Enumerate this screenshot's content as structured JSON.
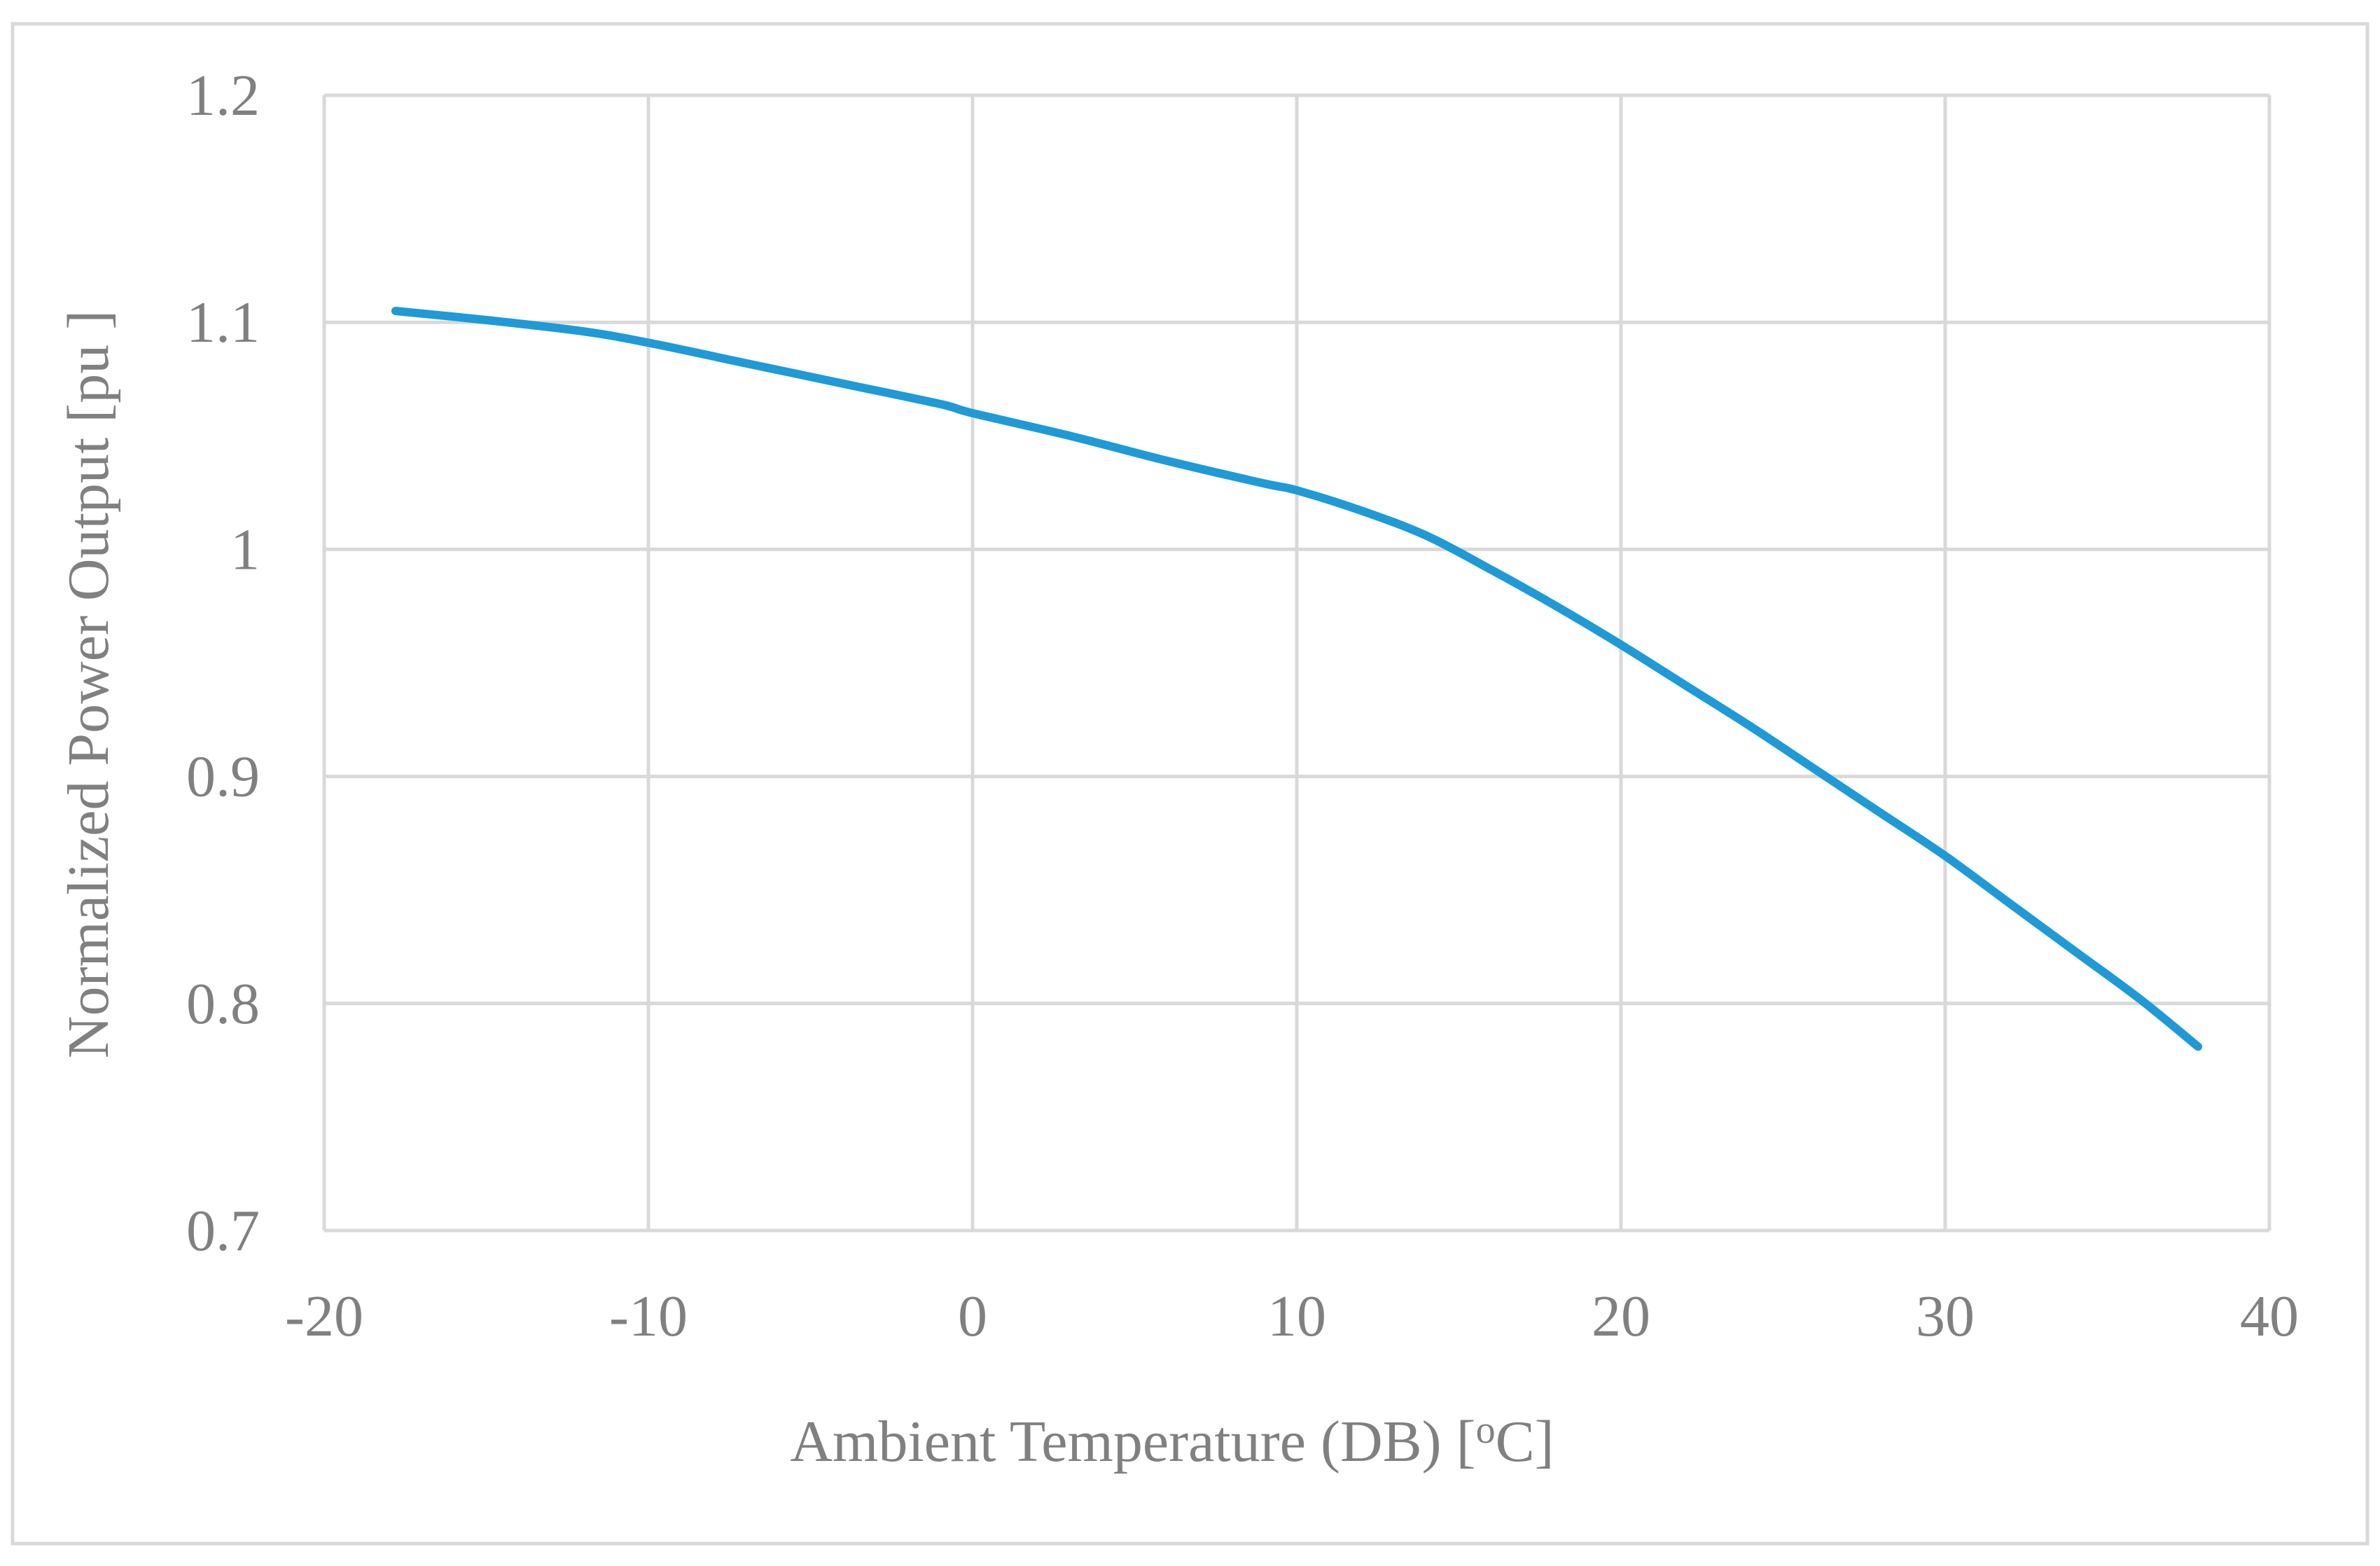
{
  "chart_data": {
    "type": "line",
    "title": "",
    "xlabel": "Ambient Temperature (DB) [",
    "xlabel_superscript": "o",
    "xlabel_suffix": "C]",
    "ylabel": "Normalized Power Output [pu ]",
    "xlim": [
      -20,
      40
    ],
    "ylim": [
      0.7,
      1.2
    ],
    "x_ticks": [
      -20,
      -10,
      0,
      10,
      20,
      30,
      40
    ],
    "x_tick_labels": [
      "-20",
      "-10",
      "0",
      "10",
      "20",
      "30",
      "40"
    ],
    "y_ticks": [
      0.7,
      0.8,
      0.9,
      1.0,
      1.1,
      1.2
    ],
    "y_tick_labels": [
      "0.7",
      "0.8",
      "0.9",
      "1",
      "1.1",
      "1.2"
    ],
    "grid": true,
    "legend": "none",
    "colors": {
      "series": "#1f9ad6",
      "grid": "#d9d9d9",
      "text": "#808080",
      "border": "#d9d9d9"
    },
    "series": [
      {
        "name": "Normalized Power Output",
        "x": [
          -17.8,
          -15,
          -12,
          -10,
          -7,
          -4,
          -1,
          0,
          3,
          6,
          9,
          10,
          12,
          14,
          16,
          18,
          20,
          22,
          24,
          26,
          28,
          30,
          32,
          34,
          36,
          37.8
        ],
        "y": [
          1.105,
          1.101,
          1.096,
          1.091,
          1.082,
          1.073,
          1.064,
          1.06,
          1.05,
          1.039,
          1.029,
          1.026,
          1.017,
          1.006,
          0.991,
          0.975,
          0.958,
          0.94,
          0.922,
          0.903,
          0.884,
          0.865,
          0.844,
          0.823,
          0.802,
          0.781
        ]
      }
    ]
  }
}
